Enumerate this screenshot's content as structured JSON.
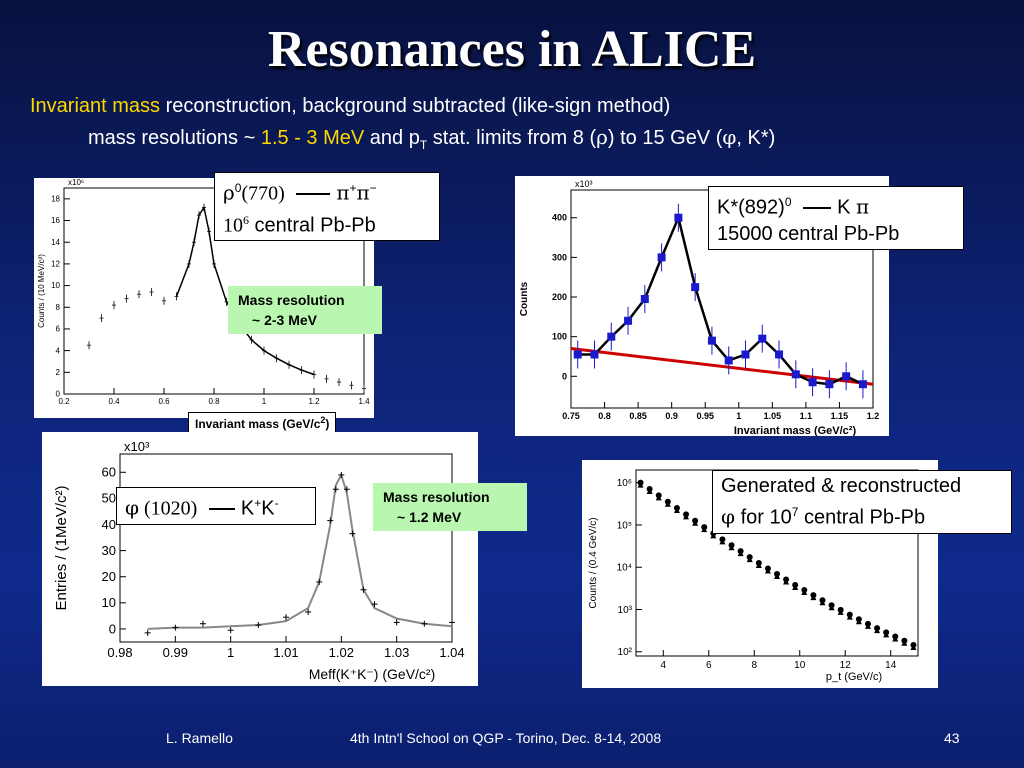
{
  "slide": {
    "title": "Resonances in ALICE",
    "line1_highlight": "Invariant mass",
    "line1_rest": " reconstruction, background subtracted (like-sign method)",
    "line2_a": "mass resolutions ~ ",
    "line2_b": "1.5 - 3 MeV",
    "line2_c": " and  p",
    "line2_sub": "T",
    "line2_d": " stat. limits from 8 (",
    "line2_rho": "ρ",
    "line2_e": ") to 15 GeV (",
    "line2_phi": "φ",
    "line2_f": ", K*)"
  },
  "annotations": {
    "rho_a": "ρ",
    "rho_sup": "0",
    "rho_mass": "(770)",
    "rho_prod": "π",
    "rho_plus": "+",
    "rho_prod2": "π",
    "rho_minus": "−",
    "rho_ten": "10",
    "rho_six": "6",
    "rho_events": " central Pb-Pb",
    "kstar_a": "K*(892)",
    "kstar_sup": "0",
    "kstar_prod": "K ",
    "kstar_pi": "π",
    "kstar_events": "15000 central Pb-Pb",
    "phi_a": "φ",
    "phi_mass": " (1020)",
    "phi_prod": "K",
    "phi_plus": "+",
    "phi_prod2": "K",
    "phi_minus": "-",
    "gen_line1": "Generated & reconstructed",
    "gen_phi": "φ",
    "gen_for": " for 10",
    "gen_sup": "7",
    "gen_events": " central Pb-Pb",
    "res1_title": "Mass resolution",
    "res1_value": "~ 2-3 MeV",
    "res2_title": "Mass resolution",
    "res2_value": "~ 1.2 MeV",
    "inv_mass_label_a": "Invariant mass (GeV/c",
    "inv_mass_label_sup": "2",
    "inv_mass_label_b": ")"
  },
  "footer": {
    "author": "L. Ramello",
    "event": "4th Intn'l School on QGP  - Torino, Dec. 8-14, 2008",
    "page": "43"
  },
  "colors": {
    "accent_yellow": "#ffd700",
    "green_box": "#b9f7b0",
    "kstar_points": "#1a1acc",
    "kstar_bg_line": "#cc0000"
  },
  "chart_data": [
    {
      "id": "rho",
      "type": "line",
      "title": "",
      "xlabel": "",
      "ylabel": "Counts / (10 MeV/c²)",
      "y_multiplier": "x10⁶",
      "xlim": [
        0.2,
        1.4
      ],
      "ylim": [
        0,
        19
      ],
      "xticks": [
        "0.2",
        "0.4",
        "0.6",
        "0.8",
        "1",
        "1.2",
        "1.4"
      ],
      "yticks": [
        "0",
        "2",
        "4",
        "6",
        "8",
        "10",
        "12",
        "14",
        "16",
        "18"
      ],
      "x": [
        0.3,
        0.35,
        0.4,
        0.45,
        0.5,
        0.55,
        0.6,
        0.65,
        0.7,
        0.72,
        0.74,
        0.76,
        0.78,
        0.8,
        0.85,
        0.9,
        0.95,
        1.0,
        1.05,
        1.1,
        1.15,
        1.2,
        1.25,
        1.3,
        1.35,
        1.4
      ],
      "y": [
        4.5,
        7.0,
        8.2,
        8.8,
        9.2,
        9.4,
        8.6,
        9.0,
        12.0,
        14.0,
        16.5,
        17.2,
        15.0,
        12.0,
        8.5,
        6.5,
        5.0,
        4.0,
        3.3,
        2.7,
        2.2,
        1.8,
        1.4,
        1.1,
        0.8,
        0.5
      ]
    },
    {
      "id": "kstar",
      "type": "scatter",
      "title": "",
      "xlabel": "Invariant mass (GeV/c²)",
      "ylabel": "Counts",
      "y_multiplier": "x10³",
      "xlim": [
        0.75,
        1.2
      ],
      "ylim": [
        -80,
        470
      ],
      "xticks": [
        "0.75",
        "0.8",
        "0.85",
        "0.9",
        "0.95",
        "1",
        "1.05",
        "1.1",
        "1.15",
        "1.2"
      ],
      "yticks": [
        "0",
        "100",
        "200",
        "300",
        "400"
      ],
      "x": [
        0.76,
        0.785,
        0.81,
        0.835,
        0.86,
        0.885,
        0.91,
        0.935,
        0.96,
        0.985,
        1.01,
        1.035,
        1.06,
        1.085,
        1.11,
        1.135,
        1.16,
        1.185
      ],
      "y": [
        55,
        55,
        100,
        140,
        195,
        300,
        400,
        225,
        90,
        40,
        55,
        95,
        55,
        5,
        -15,
        -20,
        0,
        -20
      ],
      "fit_curve_label": "",
      "background_line": {
        "x": [
          0.75,
          1.2
        ],
        "y": [
          70,
          -20
        ]
      }
    },
    {
      "id": "phi",
      "type": "line",
      "title": "",
      "xlabel": "Meff(K⁺K⁻)  (GeV/c²)",
      "ylabel": "Entries / (1MeV/c²)",
      "y_multiplier": "x10³",
      "xlim": [
        0.98,
        1.04
      ],
      "ylim": [
        -5,
        67
      ],
      "xticks": [
        "0.98",
        "0.99",
        "1",
        "1.01",
        "1.02",
        "1.03",
        "1.04"
      ],
      "yticks": [
        "0",
        "10",
        "20",
        "30",
        "40",
        "50",
        "60"
      ],
      "x": [
        0.985,
        0.99,
        0.995,
        1.0,
        1.005,
        1.01,
        1.014,
        1.016,
        1.018,
        1.019,
        1.02,
        1.021,
        1.022,
        1.024,
        1.026,
        1.03,
        1.035,
        1.04
      ],
      "y": [
        0,
        0.5,
        0.5,
        1,
        1.5,
        3,
        8,
        18,
        40,
        55,
        59,
        52,
        38,
        15,
        8,
        4,
        2,
        1
      ]
    },
    {
      "id": "phi_pt",
      "type": "scatter",
      "title": "",
      "xlabel": "p_t  (GeV/c)",
      "ylabel": "Counts / (0.4 GeV/c)",
      "log_y": true,
      "xlim": [
        2.8,
        15.2
      ],
      "ylim_log10": [
        1.9,
        6.3
      ],
      "xticks": [
        "4",
        "6",
        "8",
        "10",
        "12",
        "14"
      ],
      "yticks": [
        "10²",
        "10³",
        "10⁴",
        "10⁵",
        "10⁶"
      ],
      "x": [
        3.0,
        3.4,
        3.8,
        4.2,
        4.6,
        5.0,
        5.4,
        5.8,
        6.2,
        6.6,
        7.0,
        7.4,
        7.8,
        8.2,
        8.6,
        9.0,
        9.4,
        9.8,
        10.2,
        10.6,
        11.0,
        11.4,
        11.8,
        12.2,
        12.6,
        13.0,
        13.4,
        13.8,
        14.2,
        14.6,
        15.0
      ],
      "log10_y": [
        6.0,
        5.85,
        5.7,
        5.55,
        5.4,
        5.25,
        5.1,
        4.95,
        4.8,
        4.66,
        4.52,
        4.38,
        4.24,
        4.1,
        3.97,
        3.84,
        3.71,
        3.58,
        3.46,
        3.34,
        3.22,
        3.1,
        2.99,
        2.88,
        2.77,
        2.66,
        2.56,
        2.46,
        2.36,
        2.26,
        2.16
      ]
    }
  ]
}
